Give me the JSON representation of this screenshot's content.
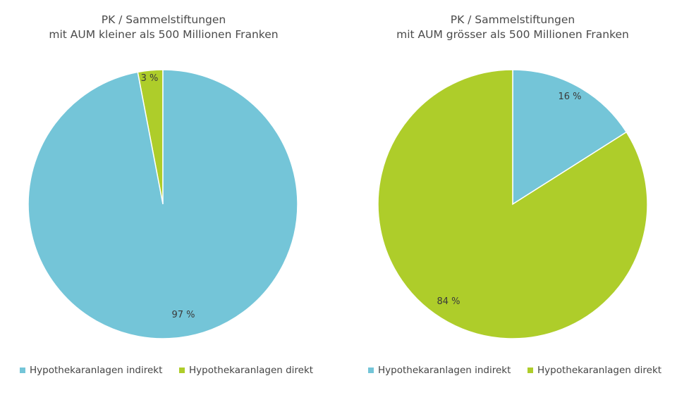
{
  "colors": {
    "indirekt": "#74c5d8",
    "direkt": "#aecd2a",
    "text": "#444444"
  },
  "chart_data": [
    {
      "type": "pie",
      "title_lines": [
        "PK / Sammelstiftungen",
        "mit AUM kleiner als 500 Millionen Franken"
      ],
      "slices": [
        {
          "name": "Hypothekaranlagen direkt",
          "value": 3,
          "label": "3 %"
        },
        {
          "name": "Hypothekaranlagen indirekt",
          "value": 97,
          "label": "97 %"
        }
      ],
      "legend": {
        "placement": "bottom",
        "items": [
          "Hypothekaranlagen indirekt",
          "Hypothekaranlagen direkt"
        ]
      }
    },
    {
      "type": "pie",
      "title_lines": [
        "PK / Sammelstiftungen",
        "mit AUM grösser als 500 Millionen Franken"
      ],
      "slices": [
        {
          "name": "Hypothekaranlagen indirekt",
          "value": 16,
          "label": "16 %"
        },
        {
          "name": "Hypothekaranlagen direkt",
          "value": 84,
          "label": "84 %"
        }
      ],
      "legend": {
        "placement": "bottom",
        "items": [
          "Hypothekaranlagen indirekt",
          "Hypothekaranlagen direkt"
        ]
      }
    }
  ]
}
